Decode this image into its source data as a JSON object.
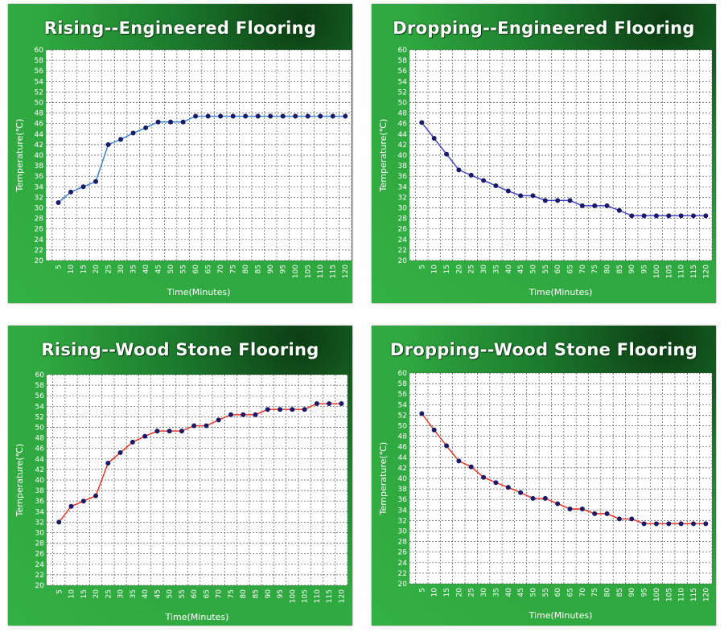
{
  "chart_data": [
    {
      "type": "line",
      "title": "Rising--Engineered Flooring",
      "xlabel": "Time(Minutes)",
      "ylabel": "Temperature(℃)",
      "xlim": [
        5,
        120
      ],
      "ylim": [
        20,
        60
      ],
      "grid": true,
      "line_color": "#2a7fd8",
      "marker_color": "#1a1a6a",
      "x": [
        5,
        10,
        15,
        20,
        25,
        30,
        35,
        40,
        45,
        50,
        55,
        60,
        65,
        70,
        75,
        80,
        85,
        90,
        95,
        100,
        105,
        110,
        115,
        120
      ],
      "y": [
        31,
        33,
        34,
        35,
        42,
        43,
        44.2,
        45.2,
        46.3,
        46.3,
        46.3,
        47.4,
        47.4,
        47.4,
        47.4,
        47.4,
        47.4,
        47.4,
        47.4,
        47.4,
        47.4,
        47.4,
        47.4,
        47.4
      ]
    },
    {
      "type": "line",
      "title": "Dropping--Engineered Flooring",
      "xlabel": "Time(Minutes)",
      "ylabel": "Temperature(℃)",
      "xlim": [
        5,
        120
      ],
      "ylim": [
        20,
        60
      ],
      "grid": true,
      "line_color": "#3a3ad0",
      "marker_color": "#1a1a6a",
      "x": [
        5,
        10,
        15,
        20,
        25,
        30,
        35,
        40,
        45,
        50,
        55,
        60,
        65,
        70,
        75,
        80,
        85,
        90,
        95,
        100,
        105,
        110,
        115,
        120
      ],
      "y": [
        46.2,
        43.2,
        40.2,
        37.2,
        36.2,
        35.2,
        34.2,
        33.2,
        32.3,
        32.3,
        31.4,
        31.4,
        31.4,
        30.4,
        30.4,
        30.4,
        29.5,
        28.5,
        28.5,
        28.5,
        28.5,
        28.5,
        28.5,
        28.5
      ]
    },
    {
      "type": "line",
      "title": "Rising--Wood Stone Flooring",
      "xlabel": "Time(Minutes)",
      "ylabel": "Temperature(℃)",
      "xlim": [
        5,
        120
      ],
      "ylim": [
        20,
        60
      ],
      "grid": true,
      "line_color": "#ee2a1a",
      "marker_color": "#1a1a6a",
      "x": [
        5,
        10,
        15,
        20,
        25,
        30,
        35,
        40,
        45,
        50,
        55,
        60,
        65,
        70,
        75,
        80,
        85,
        90,
        95,
        100,
        105,
        110,
        115,
        120
      ],
      "y": [
        32,
        35,
        36,
        37,
        43.2,
        45.2,
        47.2,
        48.3,
        49.3,
        49.3,
        49.3,
        50.3,
        50.3,
        51.4,
        52.4,
        52.4,
        52.4,
        53.4,
        53.4,
        53.4,
        53.4,
        54.5,
        54.5,
        54.5
      ]
    },
    {
      "type": "line",
      "title": "Dropping--Wood Stone Flooring",
      "xlabel": "Time(Minutes)",
      "ylabel": "Temperature(℃)",
      "xlim": [
        5,
        120
      ],
      "ylim": [
        20,
        60
      ],
      "grid": true,
      "line_color": "#ee2a1a",
      "marker_color": "#1a1a6a",
      "x": [
        5,
        10,
        15,
        20,
        25,
        30,
        35,
        40,
        45,
        50,
        55,
        60,
        65,
        70,
        75,
        80,
        85,
        90,
        95,
        100,
        105,
        110,
        115,
        120
      ],
      "y": [
        52.3,
        49.2,
        46.2,
        43.3,
        42.2,
        40.2,
        39.2,
        38.3,
        37.3,
        36.2,
        36.2,
        35.2,
        34.2,
        34.2,
        33.3,
        33.3,
        32.3,
        32.3,
        31.4,
        31.4,
        31.4,
        31.4,
        31.4,
        31.4
      ]
    }
  ]
}
